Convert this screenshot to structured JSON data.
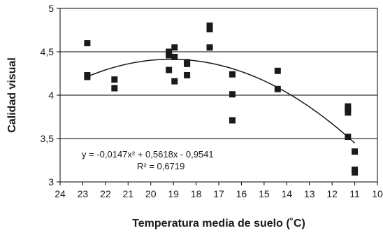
{
  "chart_data": {
    "type": "scatter",
    "xlabel": "Temperatura media de suelo (˚C)",
    "ylabel": "Calidad visual",
    "xlim": [
      24,
      10
    ],
    "x_reversed": true,
    "ylim": [
      3,
      5
    ],
    "x_ticks": [
      "24",
      "23",
      "22",
      "21",
      "20",
      "19",
      "18",
      "17",
      "16",
      "15",
      "14",
      "13",
      "12",
      "11",
      "10"
    ],
    "y_ticks": [
      "3",
      "3,5",
      "4",
      "4,5",
      "5"
    ],
    "grid": "horizontal",
    "colors": {
      "marker": "#1a1a1a",
      "trend": "#1a1a1a",
      "grid": "#000000"
    },
    "series": [
      {
        "marker": "square",
        "points": [
          {
            "x": 22.8,
            "y": 4.6
          },
          {
            "x": 22.8,
            "y": 4.23
          },
          {
            "x": 22.8,
            "y": 4.21
          },
          {
            "x": 21.6,
            "y": 4.18
          },
          {
            "x": 21.6,
            "y": 4.08
          },
          {
            "x": 19.2,
            "y": 4.5
          },
          {
            "x": 19.2,
            "y": 4.46
          },
          {
            "x": 19.2,
            "y": 4.29
          },
          {
            "x": 18.95,
            "y": 4.55
          },
          {
            "x": 18.95,
            "y": 4.44
          },
          {
            "x": 18.95,
            "y": 4.16
          },
          {
            "x": 18.4,
            "y": 4.38
          },
          {
            "x": 18.4,
            "y": 4.36
          },
          {
            "x": 18.4,
            "y": 4.23
          },
          {
            "x": 17.4,
            "y": 4.8
          },
          {
            "x": 17.4,
            "y": 4.76
          },
          {
            "x": 17.4,
            "y": 4.55
          },
          {
            "x": 16.4,
            "y": 4.24
          },
          {
            "x": 16.4,
            "y": 4.01
          },
          {
            "x": 16.4,
            "y": 3.71
          },
          {
            "x": 14.4,
            "y": 4.28
          },
          {
            "x": 14.4,
            "y": 4.07
          },
          {
            "x": 11.3,
            "y": 3.87
          },
          {
            "x": 11.3,
            "y": 3.84
          },
          {
            "x": 11.3,
            "y": 3.8
          },
          {
            "x": 11.3,
            "y": 3.52
          },
          {
            "x": 11.0,
            "y": 3.35
          },
          {
            "x": 11.0,
            "y": 3.14
          },
          {
            "x": 11.0,
            "y": 3.11
          }
        ]
      }
    ],
    "trendline": {
      "type": "polynomial",
      "coefficients": [
        -0.0147,
        0.5618,
        -0.9541
      ],
      "x_range": [
        22.8,
        11.0
      ]
    },
    "annotations": [
      "y = -0,0147x² + 0,5618x - 0,9541",
      "R² = 0,6719"
    ]
  }
}
